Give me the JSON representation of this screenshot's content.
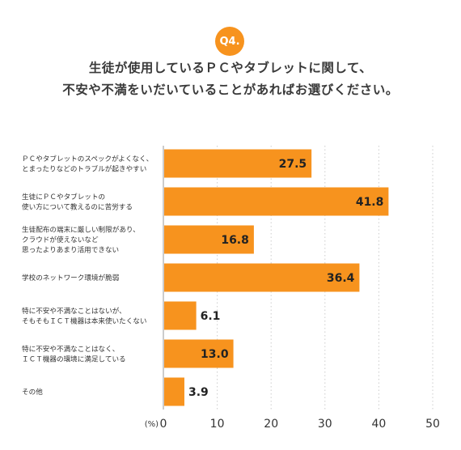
{
  "header": {
    "badge": "Q4.",
    "title_lines": [
      "生徒が使用しているＰＣやタブレットに関して、",
      "不安や不満をいだいていることがあればお選びください。"
    ]
  },
  "colors": {
    "accent": "#F7931E",
    "bar": "#F7931E",
    "grid": "#cccccc"
  },
  "chart_data": {
    "type": "bar",
    "orientation": "horizontal",
    "categories": [
      [
        "ＰＣやタブレットのスペックがよくなく、",
        "とまったりなどのトラブルが起きやすい"
      ],
      [
        "生徒にＰＣやタブレットの",
        "使い方について教えるのに苦労する"
      ],
      [
        "生徒配布の端末に厳しい制限があり、",
        "クラウドが使えないなど",
        "思ったよりあまり活用できない"
      ],
      [
        "学校のネットワーク環境が脆弱"
      ],
      [
        "特に不安や不満なことはないが、",
        "そもそもＩＣＴ機器は本来使いたくない"
      ],
      [
        "特に不安や不満なことはなく、",
        "ＩＣＴ機器の環境に満足している"
      ],
      [
        "その他"
      ]
    ],
    "values": [
      27.5,
      41.8,
      16.8,
      36.4,
      6.1,
      13.0,
      3.9
    ],
    "value_labels": [
      "27.5",
      "41.8",
      "16.8",
      "36.4",
      "6.1",
      "13.0",
      "3.9"
    ],
    "xlim": [
      0,
      50
    ],
    "xticks": [
      "0",
      "10",
      "20",
      "30",
      "40",
      "50"
    ],
    "unit": "(%)",
    "grid": true,
    "grid_style": "dotted-vertical"
  }
}
